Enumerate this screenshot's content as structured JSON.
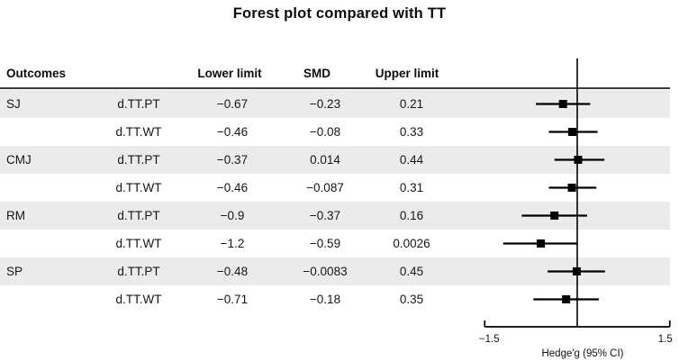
{
  "title": "Forest plot compared with TT",
  "table": {
    "headers": [
      "Outcomes",
      "Lower limit",
      "SMD",
      "Upper limit"
    ],
    "rows": [
      {
        "outcome": "SJ",
        "comparison": "d.TT.PT",
        "lower": "−0.67",
        "smd": "−0.23",
        "upper": "0.21"
      },
      {
        "outcome": "",
        "comparison": "d.TT.WT",
        "lower": "−0.46",
        "smd": "−0.08",
        "upper": "0.33"
      },
      {
        "outcome": "CMJ",
        "comparison": "d.TT.PT",
        "lower": "−0.37",
        "smd": "0.014",
        "upper": "0.44"
      },
      {
        "outcome": "",
        "comparison": "d.TT.WT",
        "lower": "−0.46",
        "smd": "−0.087",
        "upper": "0.31"
      },
      {
        "outcome": "RM",
        "comparison": "d.TT.PT",
        "lower": "−0.9",
        "smd": "−0.37",
        "upper": "0.16"
      },
      {
        "outcome": "",
        "comparison": "d.TT.WT",
        "lower": "−1.2",
        "smd": "−0.59",
        "upper": "0.0026"
      },
      {
        "outcome": "SP",
        "comparison": "d.TT.PT",
        "lower": "−0.48",
        "smd": "−0.0083",
        "upper": "0.45"
      },
      {
        "outcome": "",
        "comparison": "d.TT.WT",
        "lower": "−0.71",
        "smd": "−0.18",
        "upper": "0.35"
      }
    ]
  },
  "chart_data": {
    "type": "forest",
    "title": "Forest plot compared with TT",
    "xlabel": "Hedge'g (95% CI)",
    "xlim": [
      -1.5,
      1.5
    ],
    "x_ticks": [
      -1.5,
      1.5
    ],
    "x_tick_labels": [
      "−1.5",
      "1.5"
    ],
    "zero_line": 0,
    "marker": "square",
    "series": [
      {
        "outcome": "SJ",
        "comparison": "d.TT.PT",
        "lower": -0.67,
        "smd": -0.23,
        "upper": 0.21
      },
      {
        "outcome": "SJ",
        "comparison": "d.TT.WT",
        "lower": -0.46,
        "smd": -0.08,
        "upper": 0.33
      },
      {
        "outcome": "CMJ",
        "comparison": "d.TT.PT",
        "lower": -0.37,
        "smd": 0.014,
        "upper": 0.44
      },
      {
        "outcome": "CMJ",
        "comparison": "d.TT.WT",
        "lower": -0.46,
        "smd": -0.087,
        "upper": 0.31
      },
      {
        "outcome": "RM",
        "comparison": "d.TT.PT",
        "lower": -0.9,
        "smd": -0.37,
        "upper": 0.16
      },
      {
        "outcome": "RM",
        "comparison": "d.TT.WT",
        "lower": -1.2,
        "smd": -0.59,
        "upper": 0.0026
      },
      {
        "outcome": "SP",
        "comparison": "d.TT.PT",
        "lower": -0.48,
        "smd": -0.0083,
        "upper": 0.45
      },
      {
        "outcome": "SP",
        "comparison": "d.TT.WT",
        "lower": -0.71,
        "smd": -0.18,
        "upper": 0.35
      }
    ]
  },
  "colors": {
    "stripe": "#ebebeb",
    "text": "#111111",
    "line": "#000000",
    "separator": "#3c3c3c"
  }
}
